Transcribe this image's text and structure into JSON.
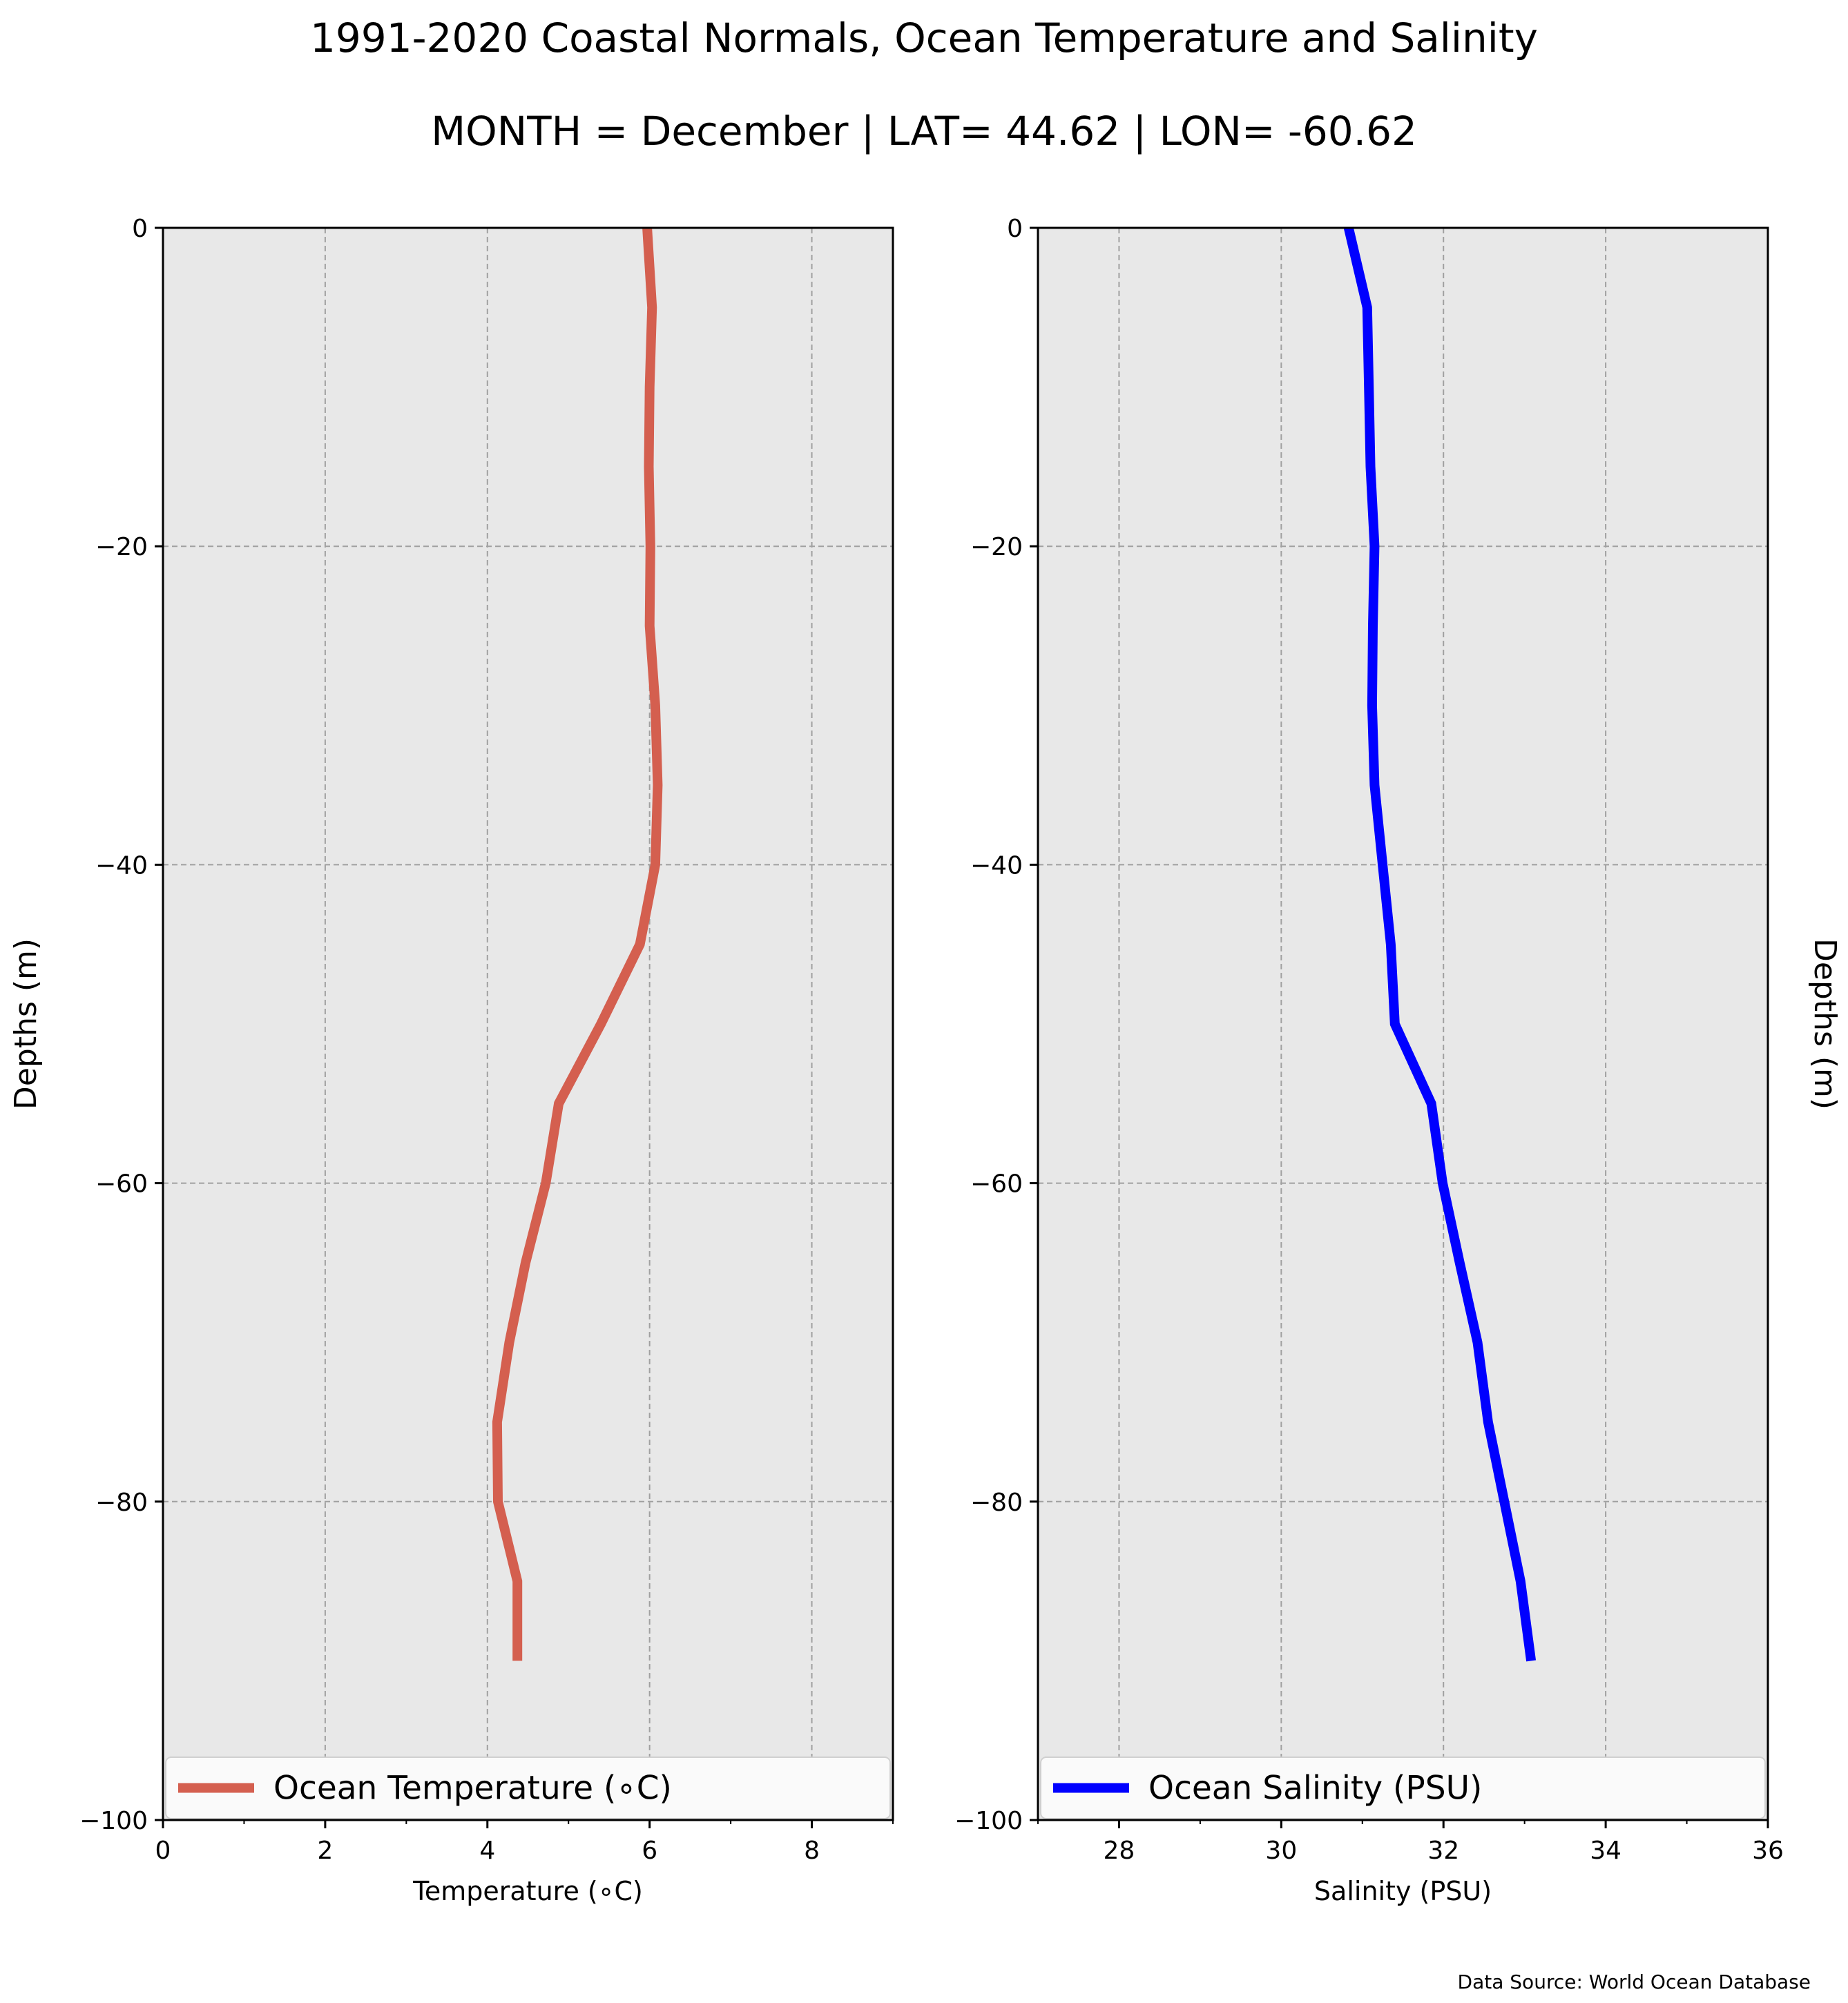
{
  "figure": {
    "title": "1991-2020 Coastal Normals, Ocean Temperature and Salinity",
    "subtitle": "MONTH = December | LAT= 44.62 | LON= -60.62",
    "source_note": "Data Source: World Ocean Database",
    "background": "#e8e8e8",
    "grid_color": "#a0a0a0"
  },
  "chart_data": [
    {
      "type": "line",
      "xlabel": "Temperature (∘C)",
      "ylabel": "Depths (m)",
      "xlim": [
        0,
        9
      ],
      "ylim": [
        -100,
        0
      ],
      "xticks": [
        0,
        2,
        4,
        6,
        8
      ],
      "yticks": [
        0,
        -20,
        -40,
        -60,
        -80,
        -100
      ],
      "ytick_labels": [
        "0",
        "−20",
        "−40",
        "−60",
        "−80",
        "−100"
      ],
      "grid": true,
      "legend_position": "bottom",
      "series": [
        {
          "name": "Ocean Temperature (∘C)",
          "color": "#d45f4f",
          "x": [
            5.97,
            6.03,
            6.0,
            5.99,
            6.01,
            6.0,
            6.07,
            6.1,
            6.07,
            5.88,
            5.4,
            4.88,
            4.72,
            4.47,
            4.27,
            4.12,
            4.13,
            4.37,
            4.37
          ],
          "y": [
            0,
            -5,
            -10,
            -15,
            -20,
            -25,
            -30,
            -35,
            -40,
            -45,
            -50,
            -55,
            -60,
            -65,
            -70,
            -75,
            -80,
            -85,
            -90
          ]
        }
      ]
    },
    {
      "type": "line",
      "xlabel": "Salinity (PSU)",
      "ylabel": "Depths (m)",
      "xlim": [
        27,
        36
      ],
      "ylim": [
        -100,
        0
      ],
      "xticks": [
        28,
        30,
        32,
        34,
        36
      ],
      "yticks": [
        0,
        -20,
        -40,
        -60,
        -80,
        -100
      ],
      "ytick_labels": [
        "0",
        "−20",
        "−40",
        "−60",
        "−80",
        "−100"
      ],
      "grid": true,
      "legend_position": "bottom",
      "series": [
        {
          "name": "Ocean Salinity (PSU)",
          "color": "#0000ff",
          "x": [
            30.83,
            31.06,
            31.08,
            31.1,
            31.15,
            31.13,
            31.12,
            31.15,
            31.25,
            31.35,
            31.4,
            31.85,
            31.99,
            32.2,
            32.42,
            32.55,
            32.75,
            32.95,
            33.08
          ],
          "y": [
            0,
            -5,
            -10,
            -15,
            -20,
            -25,
            -30,
            -35,
            -40,
            -45,
            -50,
            -55,
            -60,
            -65,
            -70,
            -75,
            -80,
            -85,
            -90
          ]
        }
      ]
    }
  ]
}
